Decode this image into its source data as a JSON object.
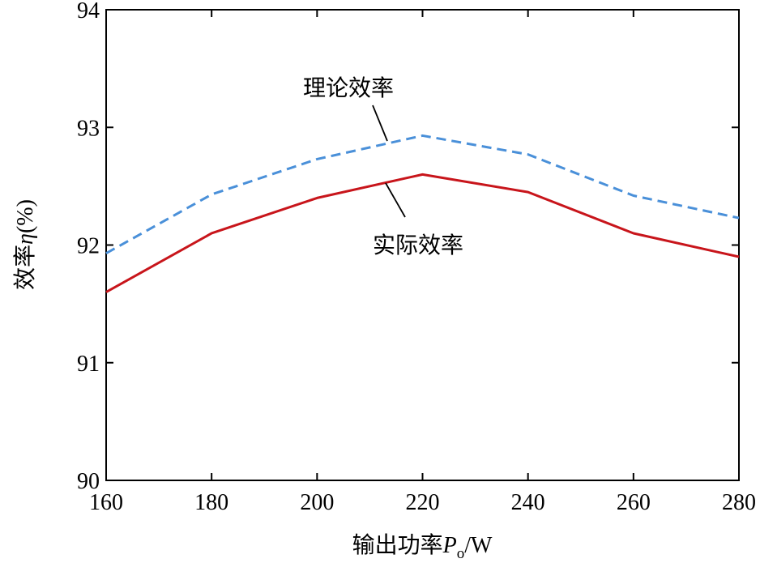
{
  "chart_data": {
    "type": "line",
    "xlabel": {
      "main": "输出功率",
      "symbol": "P",
      "subscript": "o",
      "unit": "/W"
    },
    "ylabel": {
      "main": "效率",
      "symbol": "η",
      "unit": "(%)"
    },
    "x": [
      160,
      180,
      200,
      220,
      240,
      260,
      280
    ],
    "xlim": [
      160,
      280
    ],
    "ylim": [
      90,
      94
    ],
    "xticks": [
      "160",
      "180",
      "200",
      "220",
      "240",
      "260",
      "280"
    ],
    "yticks": [
      "90",
      "91",
      "92",
      "93",
      "94"
    ],
    "grid": false,
    "series": [
      {
        "name": "理论效率",
        "values": [
          91.93,
          92.43,
          92.73,
          92.93,
          92.77,
          92.42,
          92.23
        ],
        "color": "#4a90d9",
        "style": "dashed"
      },
      {
        "name": "实际效率",
        "values": [
          91.6,
          92.1,
          92.4,
          92.6,
          92.45,
          92.1,
          91.9
        ],
        "color": "#c8151b",
        "style": "solid"
      }
    ],
    "annotations": [
      {
        "text": "理论效率",
        "series": 0
      },
      {
        "text": "实际效率",
        "series": 1
      }
    ]
  }
}
